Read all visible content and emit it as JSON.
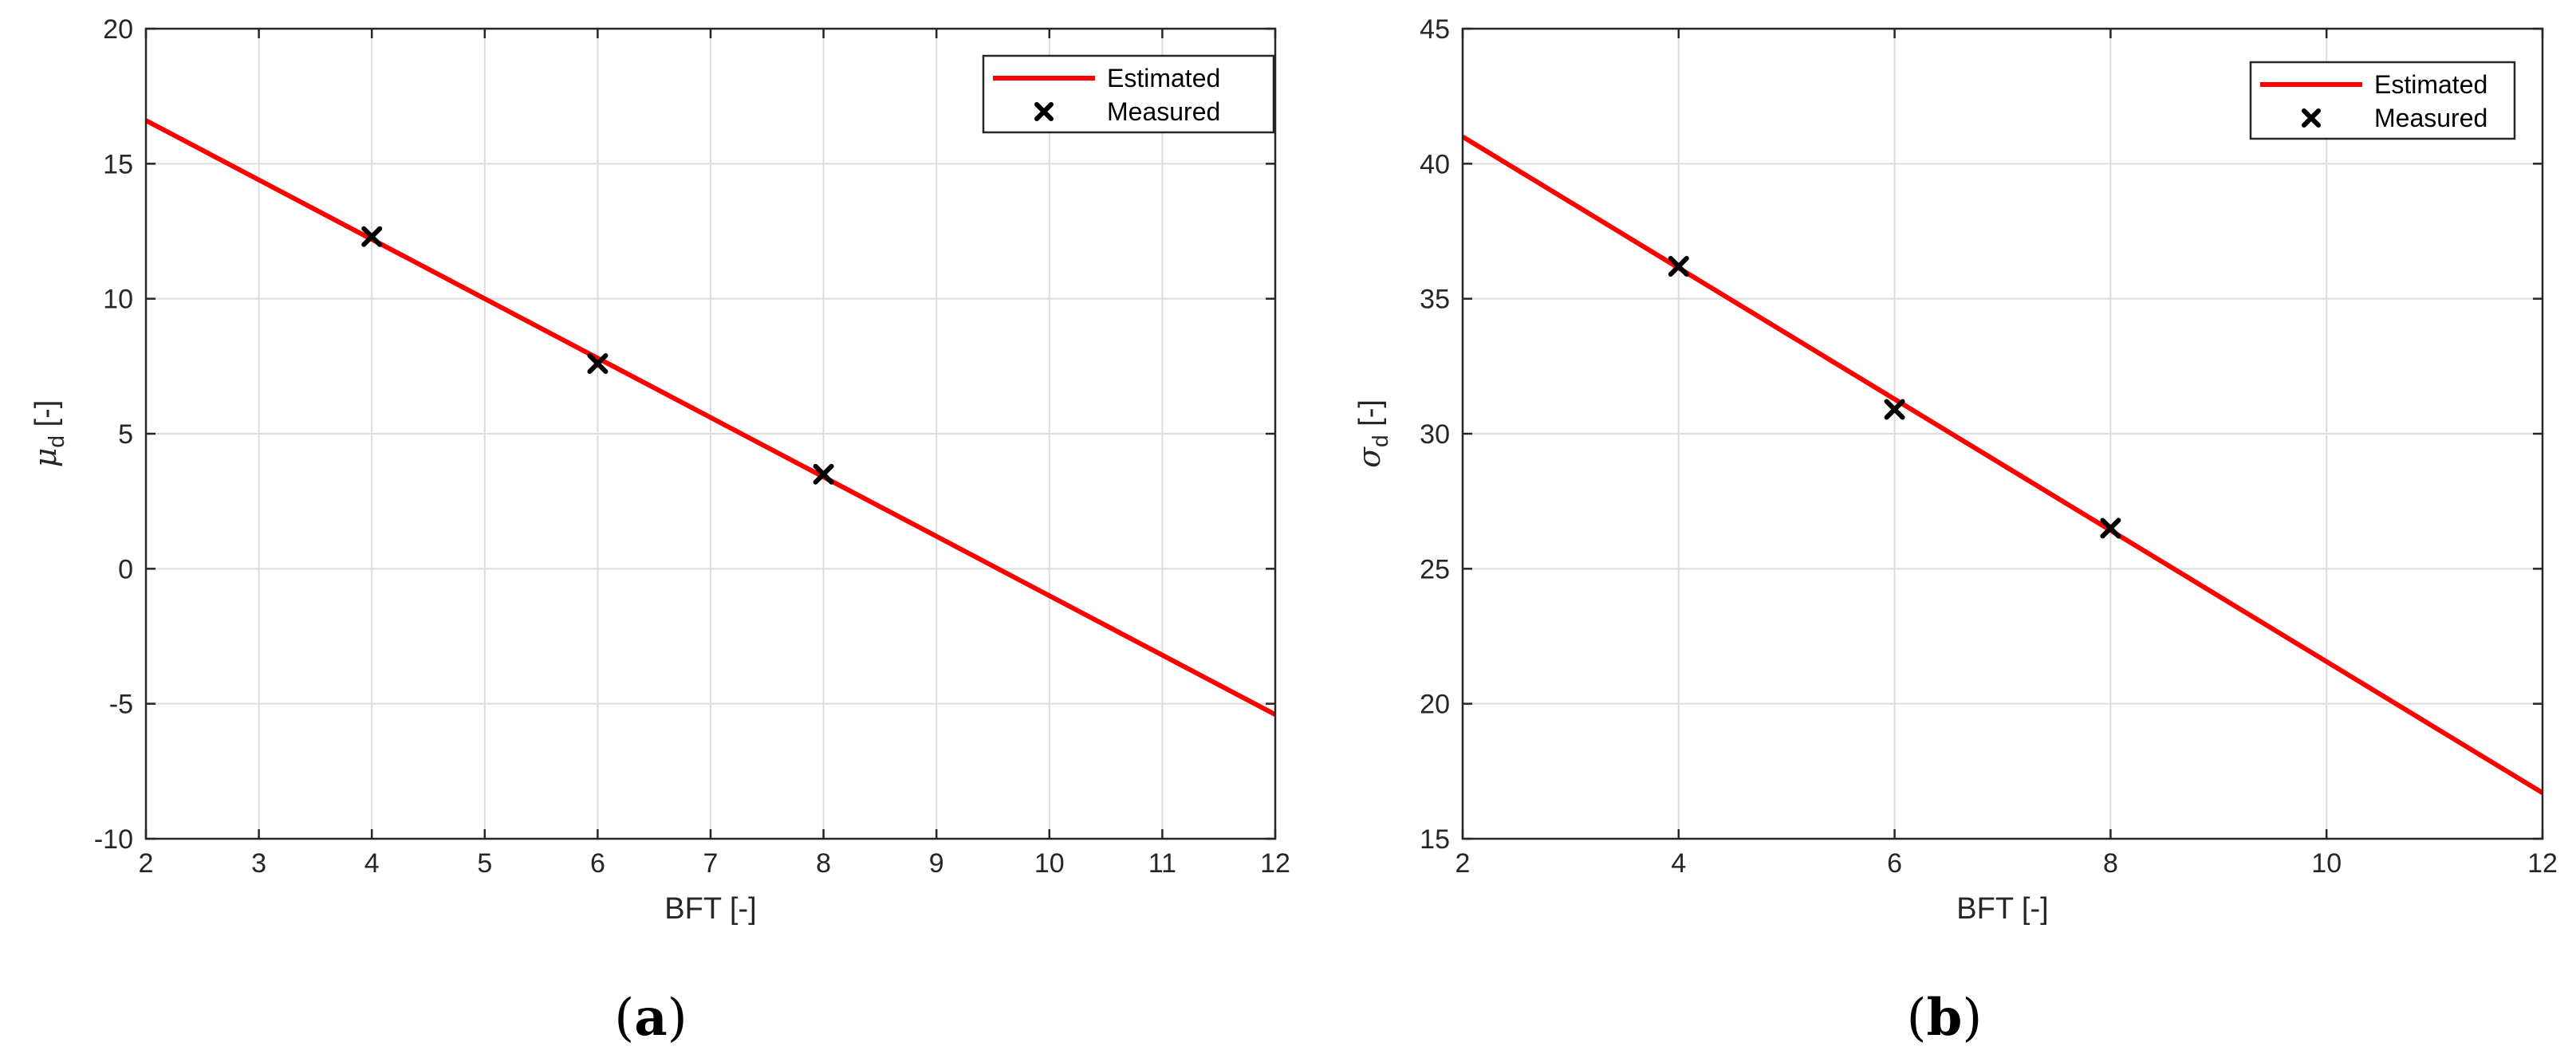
{
  "figure": {
    "panels": [
      {
        "panel_label_open": "(",
        "panel_label_letter": "a",
        "panel_label_close": ")"
      },
      {
        "panel_label_open": "(",
        "panel_label_letter": "b",
        "panel_label_close": ")"
      }
    ]
  },
  "chart_data": [
    {
      "type": "line",
      "xlabel": "BFT [-]",
      "ylabel_symbol": "μ",
      "ylabel_subscript": "d",
      "ylabel_suffix": " [-]",
      "xlim": [
        2,
        12
      ],
      "ylim": [
        -10,
        20
      ],
      "xticks": [
        2,
        3,
        4,
        5,
        6,
        7,
        8,
        9,
        10,
        11,
        12
      ],
      "yticks": [
        -10,
        -5,
        0,
        5,
        10,
        15,
        20
      ],
      "grid": true,
      "legend_position": "top-right",
      "series": [
        {
          "name": "Estimated",
          "kind": "line",
          "color": "#ff0000",
          "x": [
            2,
            12
          ],
          "y": [
            16.6,
            -5.4
          ]
        },
        {
          "name": "Measured",
          "kind": "marker",
          "marker": "x",
          "color": "#000000",
          "x": [
            4,
            6,
            8
          ],
          "y": [
            12.3,
            7.6,
            3.5
          ]
        }
      ]
    },
    {
      "type": "line",
      "xlabel": "BFT [-]",
      "ylabel_symbol": "σ",
      "ylabel_subscript": "d",
      "ylabel_suffix": " [-]",
      "xlim": [
        2,
        12
      ],
      "ylim": [
        15,
        45
      ],
      "xticks": [
        2,
        4,
        6,
        8,
        10,
        12
      ],
      "yticks": [
        15,
        20,
        25,
        30,
        35,
        40,
        45
      ],
      "grid": true,
      "legend_position": "top-right",
      "series": [
        {
          "name": "Estimated",
          "kind": "line",
          "color": "#ff0000",
          "x": [
            2,
            12
          ],
          "y": [
            41.0,
            16.7
          ]
        },
        {
          "name": "Measured",
          "kind": "marker",
          "marker": "x",
          "color": "#000000",
          "x": [
            4,
            6,
            8
          ],
          "y": [
            36.2,
            30.9,
            26.5
          ]
        }
      ]
    }
  ]
}
